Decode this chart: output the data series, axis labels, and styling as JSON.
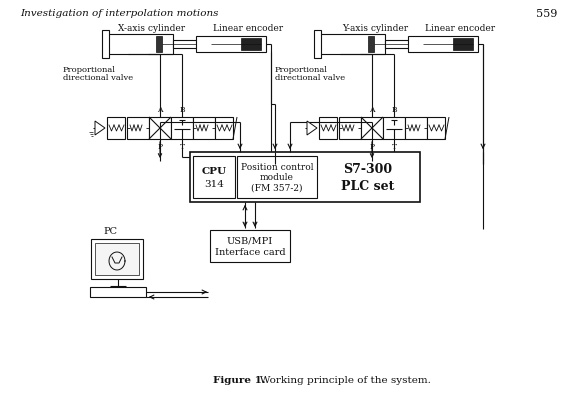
{
  "title_text": "Investigation of interpolation motions",
  "page_number": "559",
  "fig_caption_bold": "Figure 1.",
  "fig_caption_normal": "   Working principle of the system.",
  "bg_color": "#ffffff",
  "line_color": "#111111",
  "labels": {
    "x_cylinder": "X-axis cylinder",
    "linear_encoder_left": "Linear encoder",
    "y_cylinder": "Y-axis cylinder",
    "linear_encoder_right": "Linear encoder",
    "prop_valve_left_1": "Proportional",
    "prop_valve_left_2": "directional valve",
    "prop_valve_right_1": "Proportional",
    "prop_valve_right_2": "directional valve",
    "A": "A",
    "B": "B",
    "P": "P",
    "T": "T",
    "cpu_line1": "CPU",
    "cpu_line2": "314",
    "pos_line1": "Position control",
    "pos_line2": "module",
    "pos_line3": "(FM 357-2)",
    "s7_line1": "S7-300",
    "s7_line2": "PLC set",
    "pc": "PC",
    "usb_line1": "USB/MPI",
    "usb_line2": "Interface card"
  }
}
